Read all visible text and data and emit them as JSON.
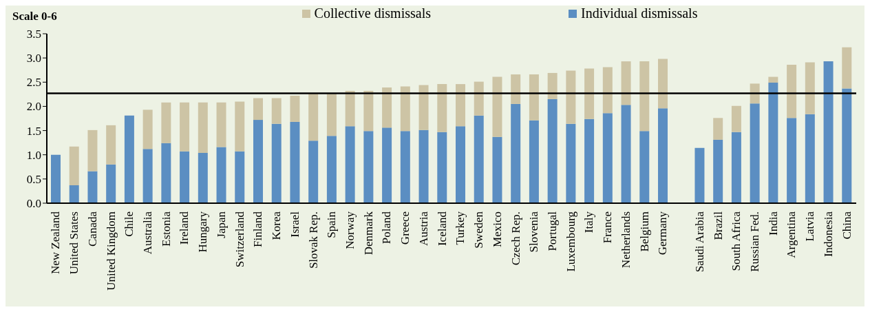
{
  "chart_data": {
    "type": "bar",
    "stacked": true,
    "ylabel": "Scale 0-6",
    "categories": [
      "New Zealand",
      "United States",
      "Canada",
      "United Kingdom",
      "Chile",
      "Australia",
      "Estonia",
      "Ireland",
      "Hungary",
      "Japan",
      "Switzerland",
      "Finland",
      "Korea",
      "Israel",
      "Slovak Rep.",
      "Spain",
      "Norway",
      "Denmark",
      "Poland",
      "Greece",
      "Austria",
      "Iceland",
      "Turkey",
      "Sweden",
      "Mexico",
      "Czech Rep.",
      "Slovenia",
      "Portugal",
      "Luxembourg",
      "Italy",
      "France",
      "Netherlands",
      "Belgium",
      "Germany",
      null,
      "Saudi Arabia",
      "Brazil",
      "South Africa",
      "Russian Fed.",
      "India",
      "Argentina",
      "Latvia",
      "Indonesia",
      "China"
    ],
    "series": [
      {
        "name": "Individual dismissals",
        "color": "#5b8ec2",
        "values": [
          1.0,
          0.37,
          0.66,
          0.8,
          1.81,
          1.12,
          1.24,
          1.07,
          1.04,
          1.16,
          1.07,
          1.72,
          1.64,
          1.68,
          1.29,
          1.39,
          1.59,
          1.49,
          1.56,
          1.49,
          1.51,
          1.47,
          1.59,
          1.81,
          1.37,
          2.05,
          1.71,
          2.15,
          1.64,
          1.74,
          1.86,
          2.03,
          1.49,
          1.96,
          null,
          1.14,
          1.31,
          1.47,
          2.06,
          2.49,
          1.76,
          1.84,
          2.93,
          2.37
        ]
      },
      {
        "name": "Collective dismissals",
        "color": "#cdc4a5",
        "values": [
          0,
          0.8,
          0.85,
          0.81,
          0,
          0.81,
          0.84,
          1.01,
          1.04,
          0.92,
          1.03,
          0.45,
          0.53,
          0.54,
          0.97,
          0.87,
          0.73,
          0.83,
          0.83,
          0.92,
          0.93,
          0.99,
          0.87,
          0.7,
          1.24,
          0.61,
          0.95,
          0.54,
          1.1,
          1.04,
          0.95,
          0.9,
          1.44,
          1.02,
          null,
          0,
          0.45,
          0.54,
          0.41,
          0.12,
          1.1,
          1.07,
          0,
          0.85
        ]
      }
    ],
    "ylim": [
      0,
      3.5
    ],
    "yticks": [
      {
        "value": 0,
        "label": "0.0"
      },
      {
        "value": 0.5,
        "label": "0.5"
      },
      {
        "value": 1,
        "label": "1.0"
      },
      {
        "value": 1.5,
        "label": "1.5"
      },
      {
        "value": 2,
        "label": "2.0"
      },
      {
        "value": 2.5,
        "label": "2.5"
      },
      {
        "value": 3,
        "label": "3.0"
      },
      {
        "value": 3.5,
        "label": "3.5"
      }
    ],
    "ref_lines": [
      {
        "axis": "y",
        "value": 2.27,
        "label": null,
        "color": "#000000"
      }
    ],
    "grid": false,
    "legend": "top"
  }
}
